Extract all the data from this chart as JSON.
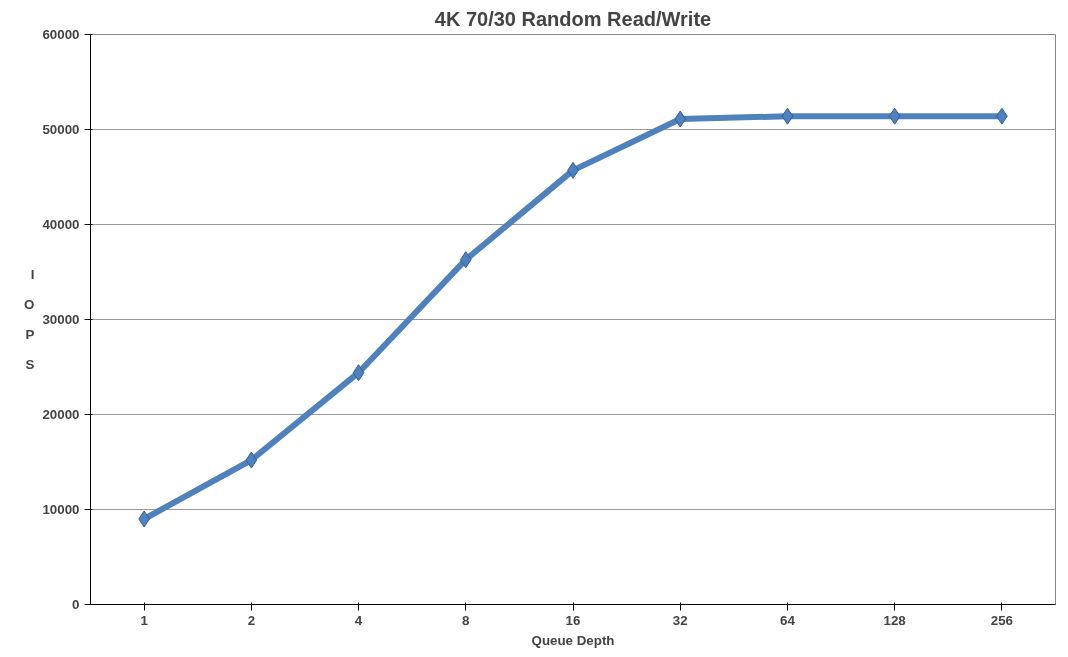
{
  "chart_data": {
    "type": "line",
    "title": "4K 70/30 Random Read/Write",
    "xlabel": "Queue Depth",
    "ylabel": "IOPS",
    "categories": [
      "1",
      "2",
      "4",
      "8",
      "16",
      "32",
      "64",
      "128",
      "256"
    ],
    "series": [
      {
        "color": "#4f81bd",
        "values": [
          9000,
          15200,
          24400,
          36300,
          45700,
          51100,
          51400,
          51400,
          51400
        ]
      }
    ],
    "ylim": [
      0,
      60000
    ],
    "yticks": [
      0,
      10000,
      20000,
      30000,
      40000,
      50000,
      60000
    ],
    "grid": "y",
    "marker": "diamond",
    "line_style": "solid"
  }
}
